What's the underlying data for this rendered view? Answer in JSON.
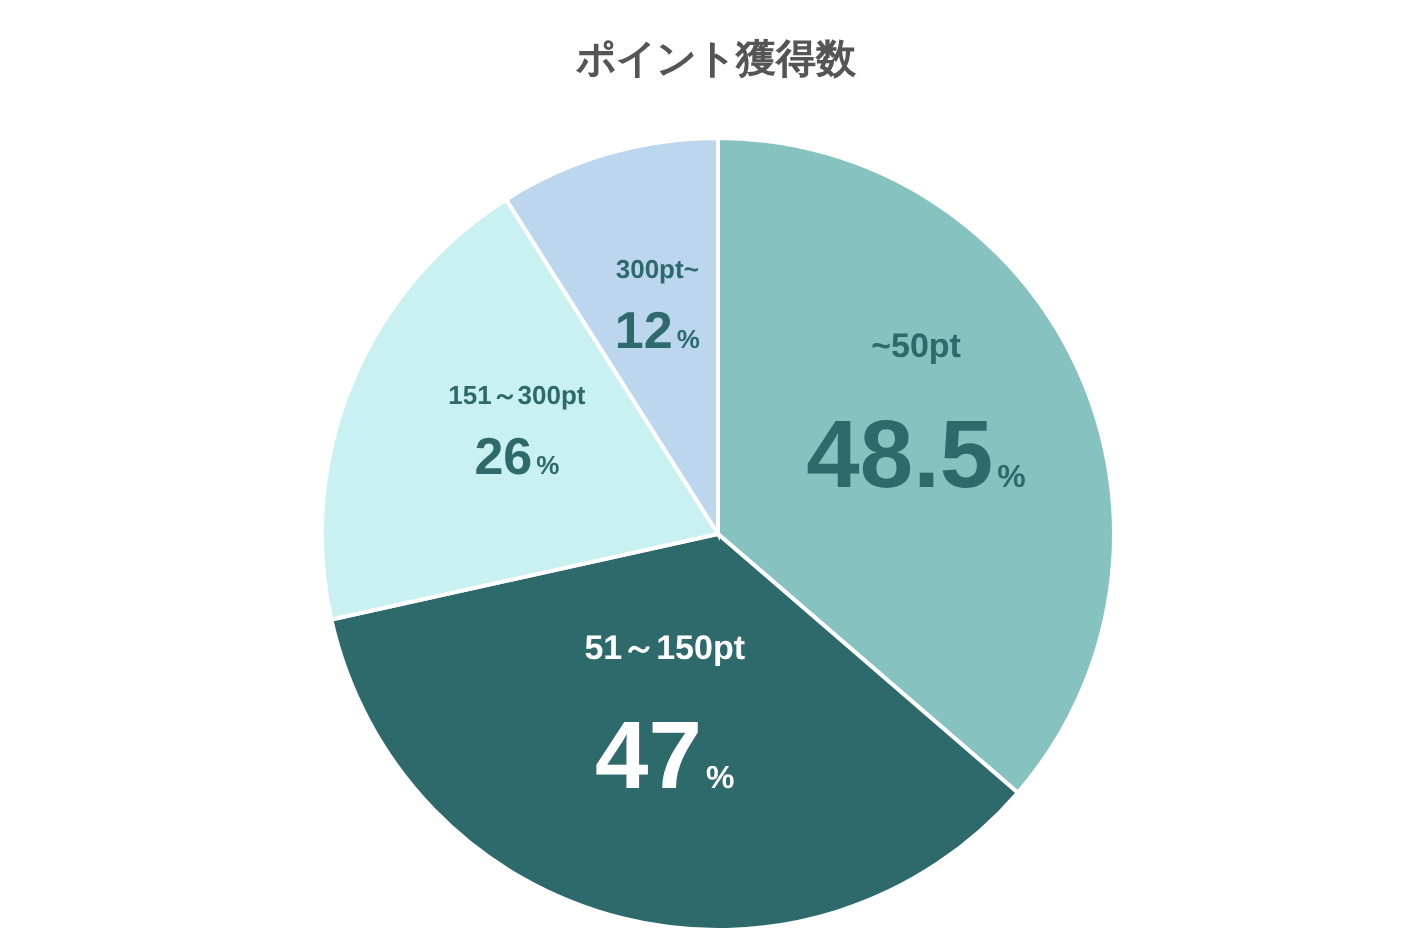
{
  "chart_data": {
    "type": "pie",
    "title": "ポイント獲得数",
    "categories": [
      "~50pt",
      "51～150pt",
      "151～300pt",
      "300pt~"
    ],
    "values": [
      48.5,
      47,
      26,
      12
    ],
    "value_labels": [
      "48.5%",
      "47%",
      "26%",
      "12%"
    ],
    "colors": [
      "#86c2bf",
      "#2e6a6c",
      "#c9f1f1",
      "#bcd6ee"
    ],
    "legend": false
  }
}
